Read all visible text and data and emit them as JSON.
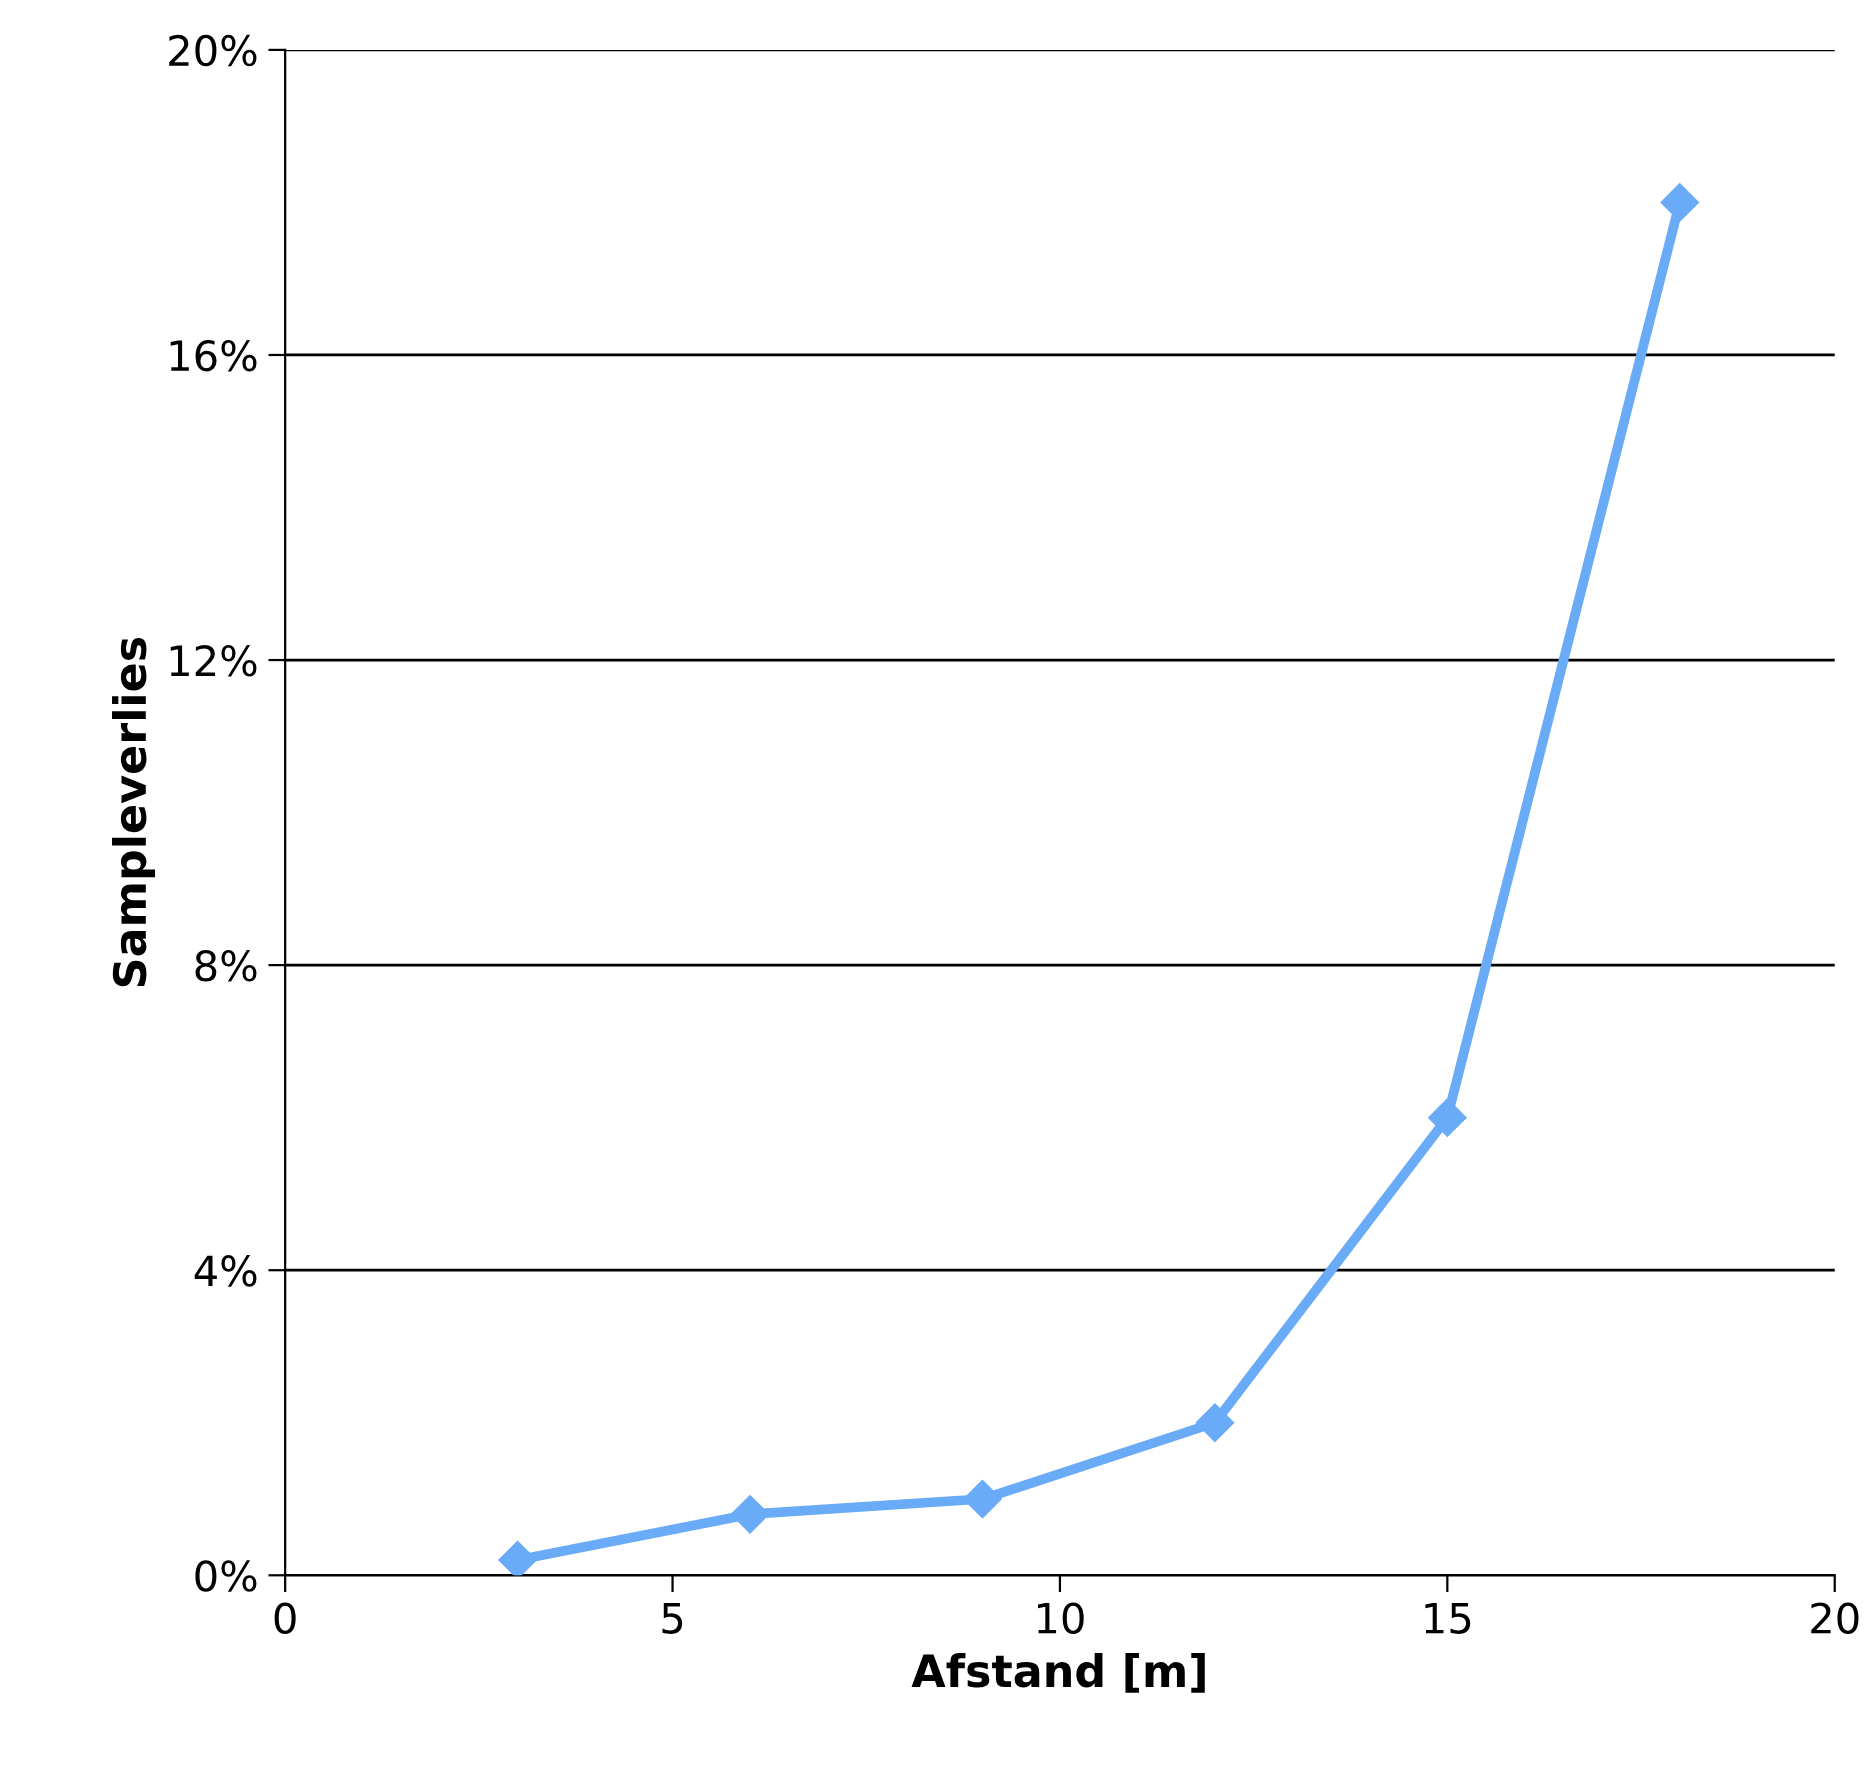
{
  "chart_data": {
    "type": "line",
    "xlabel": "Afstand [m]",
    "ylabel": "Sampleverlies",
    "x": [
      3,
      6,
      9,
      12,
      15,
      18
    ],
    "series": [
      {
        "color": "#6aabf7",
        "values": [
          0.2,
          0.8,
          1.0,
          2.0,
          6.0,
          18.0
        ]
      }
    ],
    "xlim": [
      0,
      20
    ],
    "xticks": [
      0,
      5,
      10,
      15,
      20
    ],
    "ylim": [
      0,
      20
    ],
    "yticks": [
      {
        "value": 0,
        "label": "0%"
      },
      {
        "value": 4,
        "label": "4%"
      },
      {
        "value": 8,
        "label": "8%"
      },
      {
        "value": 12,
        "label": "12%"
      },
      {
        "value": 16,
        "label": "16%"
      },
      {
        "value": 20,
        "label": "20%"
      }
    ],
    "grid": "y",
    "marker": "diamond",
    "line_style": "solid"
  }
}
